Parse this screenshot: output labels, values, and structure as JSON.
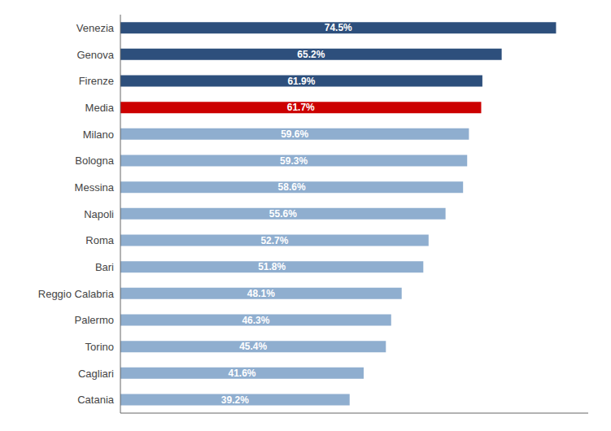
{
  "chart_data": {
    "type": "bar",
    "orientation": "horizontal",
    "categories": [
      "Venezia",
      "Genova",
      "Firenze",
      "Media",
      "Milano",
      "Bologna",
      "Messina",
      "Napoli",
      "Roma",
      "Bari",
      "Reggio Calabria",
      "Palermo",
      "Torino",
      "Cagliari",
      "Catania"
    ],
    "values": [
      74.5,
      65.2,
      61.9,
      61.7,
      59.6,
      59.3,
      58.6,
      55.6,
      52.7,
      51.8,
      48.1,
      46.3,
      45.4,
      41.6,
      39.2
    ],
    "value_labels": [
      "74.5%",
      "65.2%",
      "61.9%",
      "61.7%",
      "59.6%",
      "59.3%",
      "58.6%",
      "55.6%",
      "52.7%",
      "51.8%",
      "48.1%",
      "46.3%",
      "45.4%",
      "41.6%",
      "39.2%"
    ],
    "colors": [
      "#2d4f7c",
      "#2d4f7c",
      "#2d4f7c",
      "#cc0000",
      "#8faecf",
      "#8faecf",
      "#8faecf",
      "#8faecf",
      "#8faecf",
      "#8faecf",
      "#8faecf",
      "#8faecf",
      "#8faecf",
      "#8faecf",
      "#8faecf"
    ],
    "xlim": [
      0,
      80
    ],
    "data_labels": true,
    "tick_labels": "y",
    "grid": false
  }
}
